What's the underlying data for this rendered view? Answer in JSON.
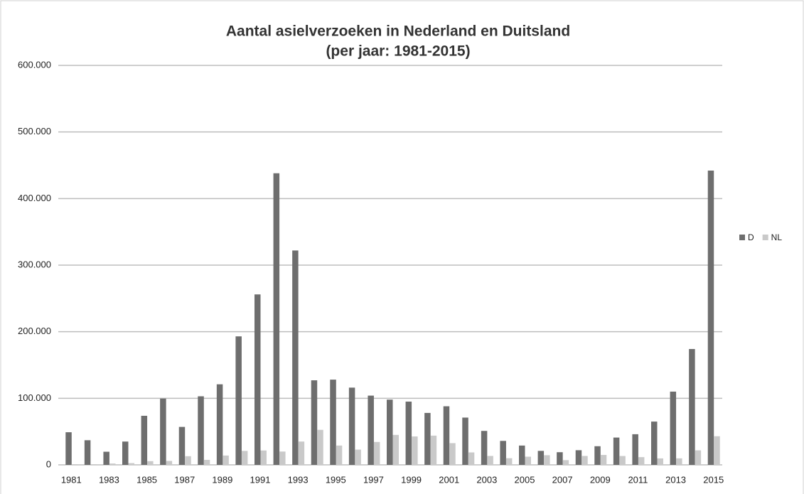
{
  "chart_data": {
    "type": "bar",
    "title": "Aantal asielverzoeken in Nederland en Duitsland",
    "subtitle": "(per jaar: 1981-2015)",
    "categories": [
      "1981",
      null,
      "1983",
      null,
      "1985",
      null,
      "1987",
      null,
      "1989",
      null,
      "1991",
      null,
      "1993",
      null,
      "1995",
      null,
      "1997",
      null,
      "1999",
      null,
      "2001",
      null,
      "2003",
      null,
      "2005",
      null,
      "2007",
      null,
      "2009",
      null,
      "2011",
      null,
      "2013",
      null,
      "2015"
    ],
    "series": [
      {
        "name": "D",
        "color": "#6e6e6e",
        "values": [
          49000,
          37000,
          19700,
          35000,
          73700,
          99600,
          57000,
          103000,
          121000,
          193000,
          256000,
          438000,
          322000,
          127000,
          128000,
          116000,
          104000,
          98000,
          95000,
          78000,
          88000,
          71000,
          51000,
          36000,
          29000,
          21000,
          19000,
          22000,
          28000,
          41000,
          46000,
          65000,
          110000,
          174000,
          442000
        ]
      },
      {
        "name": "NL",
        "color": "#c9c9c9",
        "values": [
          1000,
          1000,
          2000,
          2600,
          5600,
          5900,
          13000,
          7500,
          14000,
          21000,
          21600,
          20000,
          35000,
          52600,
          29000,
          22900,
          34400,
          45000,
          42700,
          43900,
          32600,
          18700,
          13400,
          10000,
          12300,
          14500,
          7100,
          13400,
          14900,
          13300,
          11600,
          9700,
          9800,
          21800,
          43000
        ]
      }
    ],
    "ylim": [
      0,
      600000
    ],
    "yticks": [
      0,
      {
        "value": 100000,
        "label": "100.000"
      },
      {
        "value": 200000,
        "label": "200.000"
      },
      {
        "value": 300000,
        "label": "300.000"
      },
      {
        "value": 400000,
        "label": "400.000"
      },
      {
        "value": 500000,
        "label": "500.000"
      },
      {
        "value": 600000,
        "label": "600.000"
      }
    ],
    "grid": true,
    "legend": "right"
  }
}
